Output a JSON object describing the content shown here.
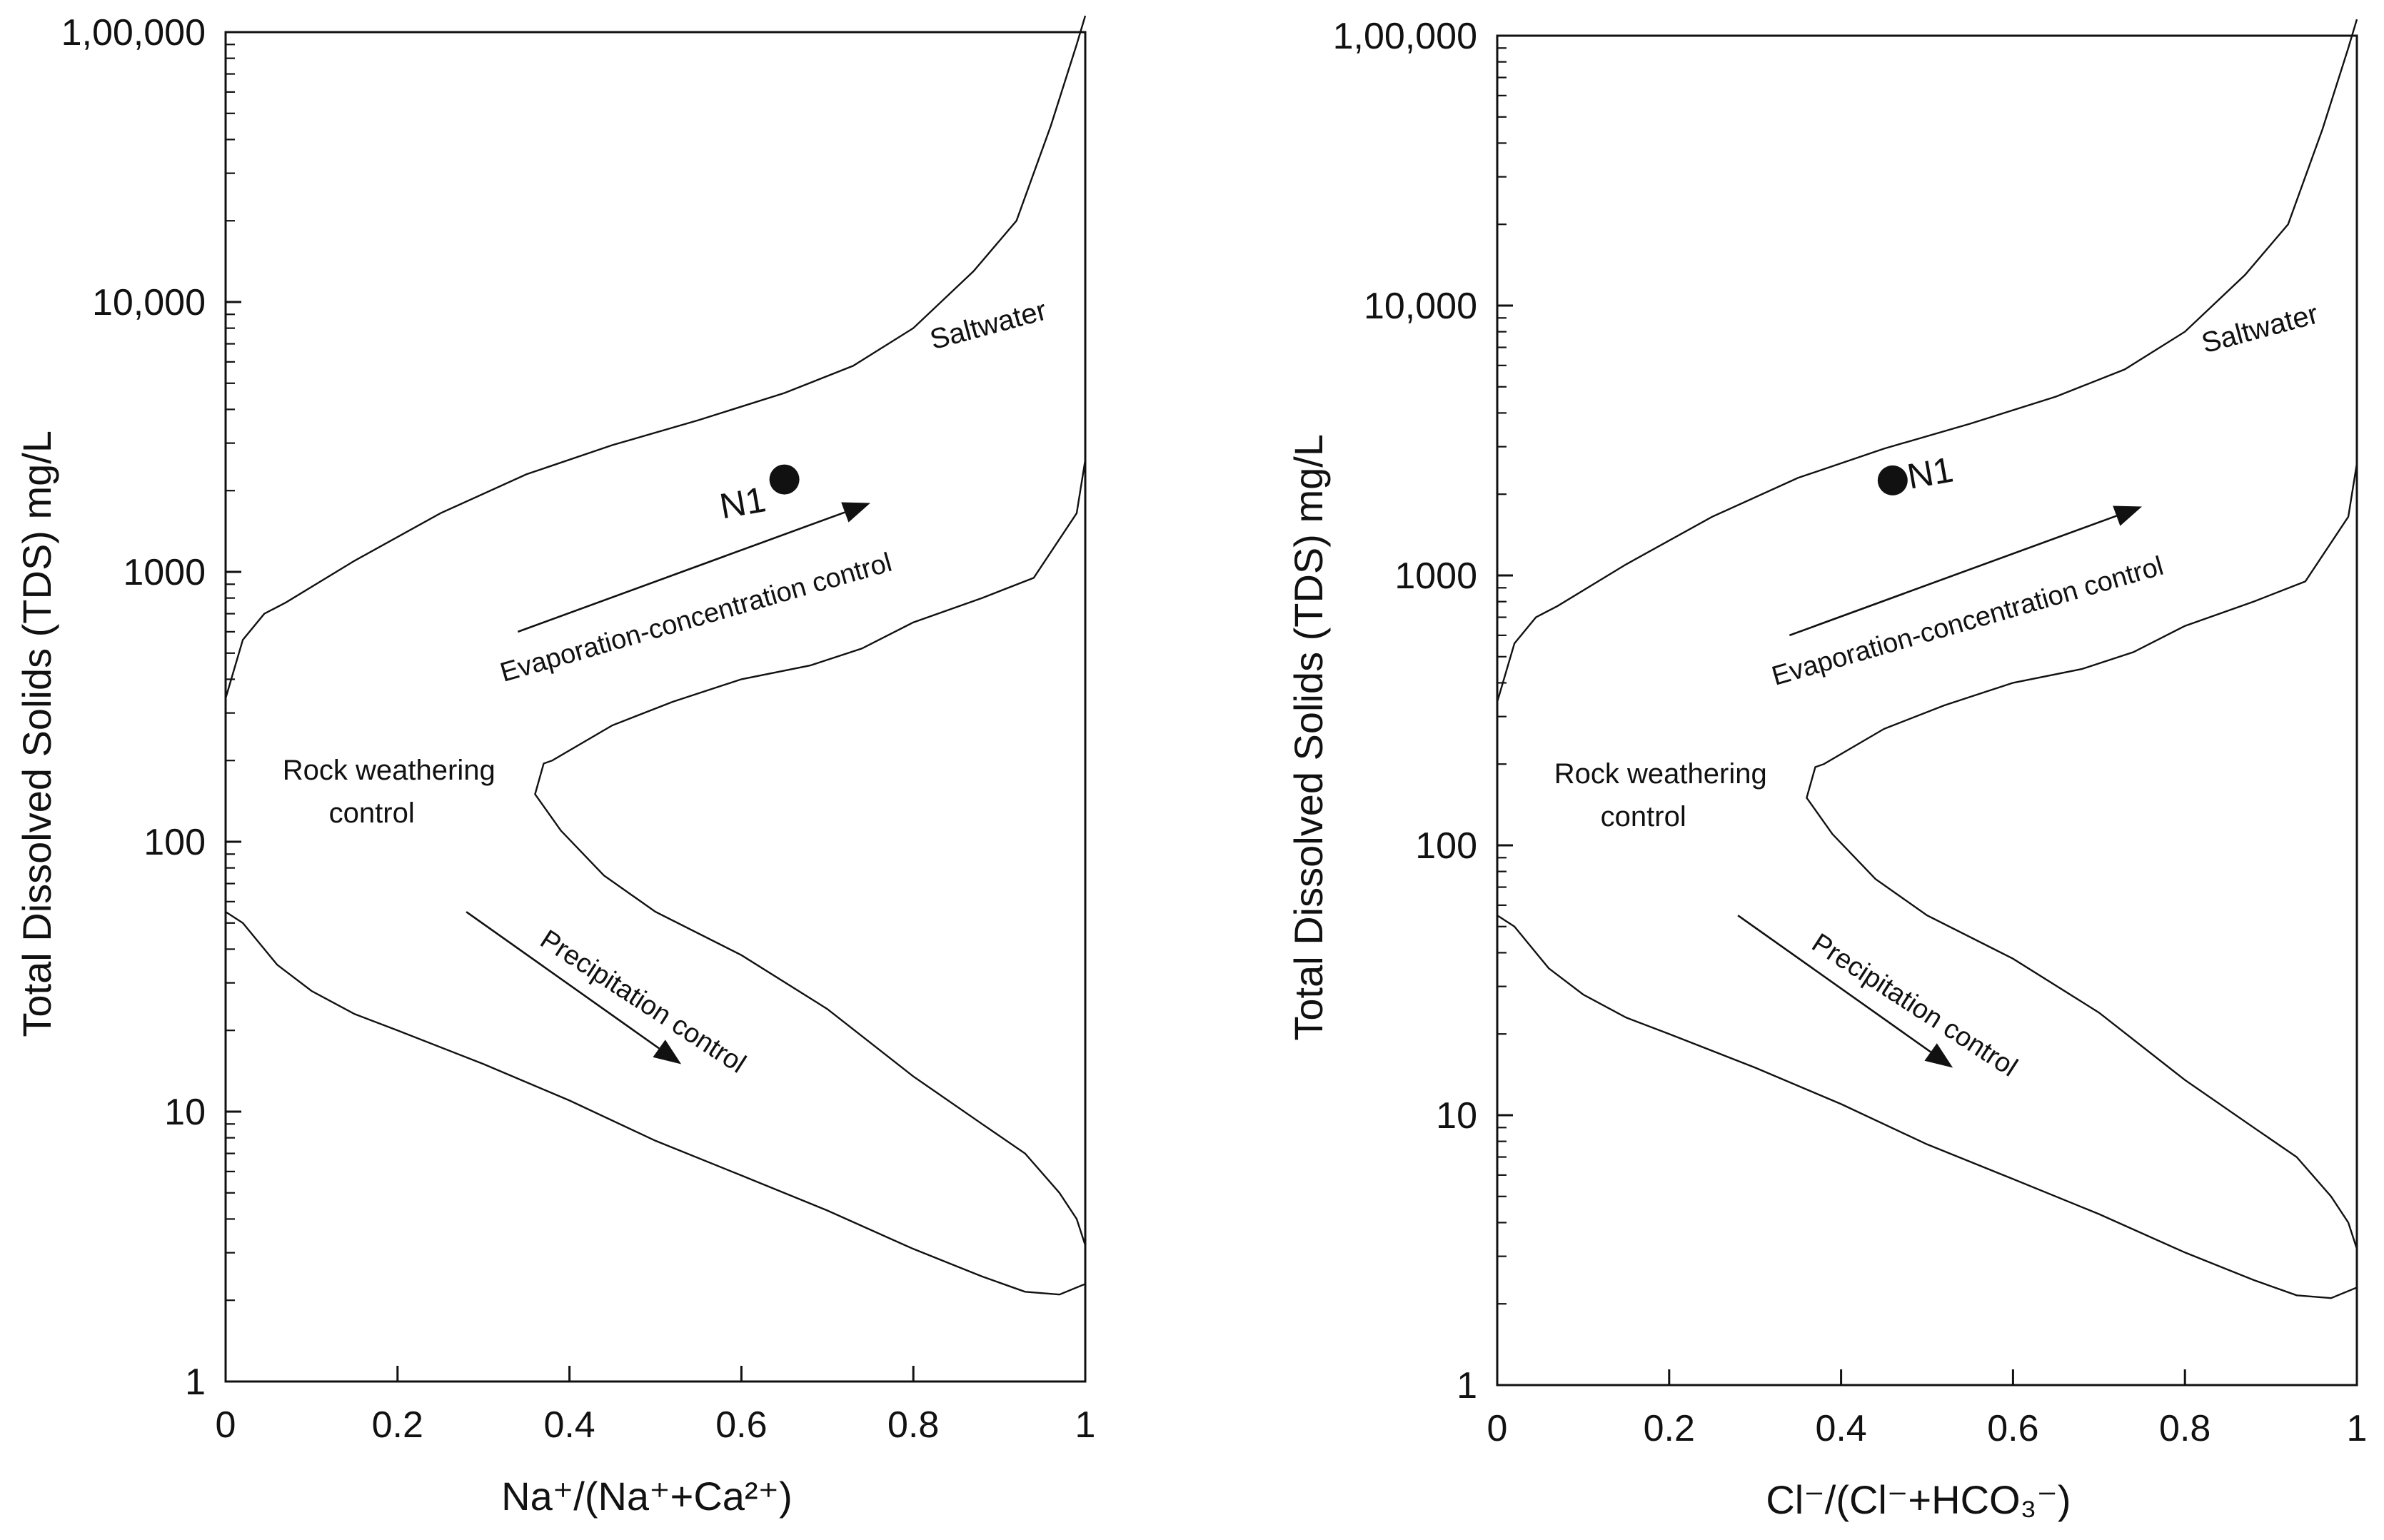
{
  "chart_data": [
    {
      "type": "scatter",
      "panel": "left",
      "title": "",
      "xlabel": "Na⁺/(Na⁺+Ca²⁺)",
      "ylabel": "Total Dissolved Solids (TDS) mg/L",
      "xlim": [
        0,
        1
      ],
      "ylim": [
        1,
        100000
      ],
      "yscale": "log",
      "x_ticks": [
        "0",
        "0.2",
        "0.4",
        "0.6",
        "0.8",
        "1"
      ],
      "y_ticks": [
        "1",
        "10",
        "100",
        "1000",
        "10,000",
        "1,00,000"
      ],
      "points": [
        {
          "label": "N1",
          "x": 0.65,
          "y": 2200
        }
      ],
      "annotations": {
        "saltwater": "Saltwater",
        "evaporation": "Evaporation-concentration control",
        "rock_line1": "Rock weathering",
        "rock_line2": "control",
        "precipitation": "Precipitation control"
      }
    },
    {
      "type": "scatter",
      "panel": "right",
      "title": "",
      "xlabel": "Cl⁻/(Cl⁻+HCO₃⁻)",
      "ylabel": "Total Dissolved Solids (TDS) mg/L",
      "xlim": [
        0,
        1
      ],
      "ylim": [
        1,
        100000
      ],
      "yscale": "log",
      "x_ticks": [
        "0",
        "0.2",
        "0.4",
        "0.6",
        "0.8",
        "1"
      ],
      "y_ticks": [
        "1",
        "10",
        "100",
        "1000",
        "10,000",
        "1,00,000"
      ],
      "points": [
        {
          "label": "N1",
          "x": 0.46,
          "y": 2250
        }
      ],
      "annotations": {
        "saltwater": "Saltwater",
        "evaporation": "Evaporation-concentration control",
        "rock_line1": "Rock weathering",
        "rock_line2": "control",
        "precipitation": "Precipitation control"
      }
    }
  ],
  "envelope": {
    "outer": [
      [
        0.0,
        340
      ],
      [
        0.02,
        560
      ],
      [
        0.045,
        700
      ],
      [
        0.07,
        770
      ],
      [
        0.15,
        1100
      ],
      [
        0.25,
        1650
      ],
      [
        0.35,
        2300
      ],
      [
        0.45,
        2950
      ],
      [
        0.55,
        3650
      ],
      [
        0.65,
        4600
      ],
      [
        0.73,
        5800
      ],
      [
        0.8,
        8000
      ],
      [
        0.87,
        13000
      ],
      [
        0.92,
        20000
      ],
      [
        0.96,
        45000
      ],
      [
        0.99,
        90000
      ],
      [
        1.0,
        115000
      ]
    ],
    "inner_upper": [
      [
        1.0,
        2600
      ],
      [
        0.99,
        1650
      ],
      [
        0.94,
        950
      ],
      [
        0.88,
        800
      ],
      [
        0.8,
        650
      ],
      [
        0.74,
        520
      ],
      [
        0.68,
        450
      ],
      [
        0.6,
        400
      ],
      [
        0.52,
        330
      ],
      [
        0.45,
        270
      ],
      [
        0.38,
        200
      ],
      [
        0.37,
        195
      ]
    ],
    "inner_lower": [
      [
        0.37,
        195
      ],
      [
        0.36,
        150
      ],
      [
        0.39,
        110
      ],
      [
        0.44,
        75
      ],
      [
        0.5,
        55
      ],
      [
        0.6,
        38
      ],
      [
        0.7,
        24
      ],
      [
        0.8,
        13.5
      ],
      [
        0.88,
        9
      ],
      [
        0.93,
        7
      ],
      [
        0.97,
        5
      ],
      [
        0.99,
        4
      ],
      [
        1.0,
        3.2
      ]
    ],
    "lower": [
      [
        0.0,
        55
      ],
      [
        0.02,
        50
      ],
      [
        0.06,
        35
      ],
      [
        0.1,
        28
      ],
      [
        0.15,
        23
      ],
      [
        0.2,
        20
      ],
      [
        0.3,
        15
      ],
      [
        0.4,
        11
      ],
      [
        0.5,
        7.8
      ],
      [
        0.6,
        5.8
      ],
      [
        0.7,
        4.3
      ],
      [
        0.8,
        3.1
      ],
      [
        0.88,
        2.45
      ],
      [
        0.93,
        2.15
      ],
      [
        0.97,
        2.1
      ],
      [
        1.0,
        2.3
      ],
      [
        1.0,
        3.2
      ]
    ]
  }
}
